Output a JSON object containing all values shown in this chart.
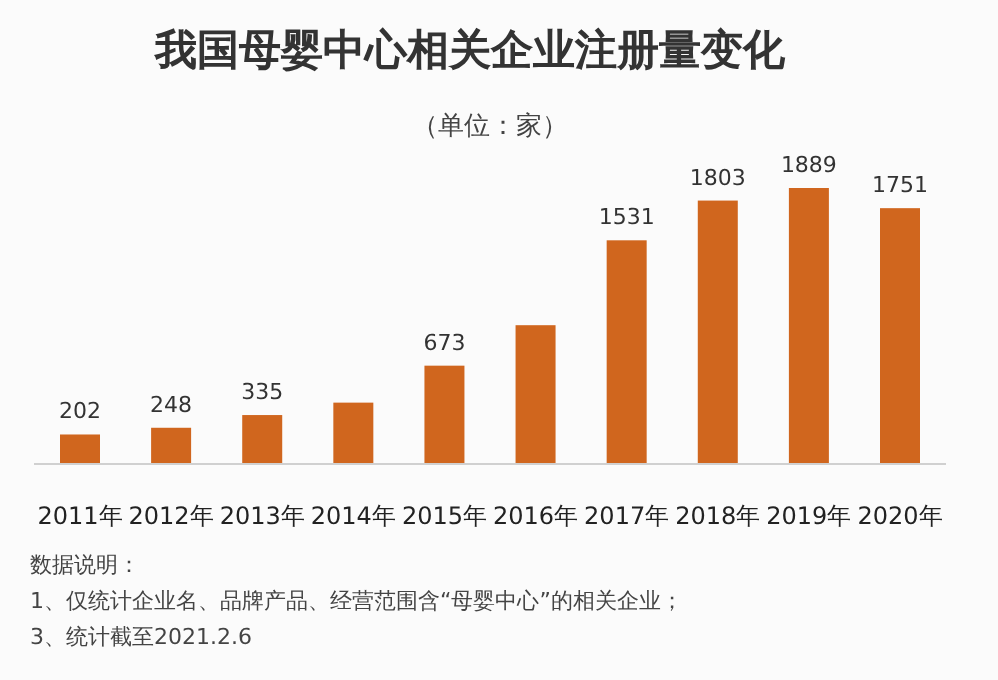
{
  "chart_data": {
    "type": "bar",
    "title": "我国母婴中心相关企业注册量变化",
    "subtitle": "（单位：家）",
    "categories": [
      "2011年",
      "2012年",
      "2013年",
      "2014年",
      "2015年",
      "2016年",
      "2017年",
      "2018年",
      "2019年",
      "2020年"
    ],
    "values": [
      202,
      248,
      335,
      420,
      673,
      950,
      1531,
      1803,
      1889,
      1751
    ],
    "value_labels": [
      "202",
      "248",
      "335",
      null,
      "673",
      null,
      "1531",
      "1803",
      "1889",
      "1751"
    ],
    "color": "#d0661e",
    "annotations": [
      "数据说明：",
      "1、仅统计企业名、品牌产品、经营范围含“母婴中心”的相关企业；",
      "3、统计截至2021.2.6"
    ]
  }
}
